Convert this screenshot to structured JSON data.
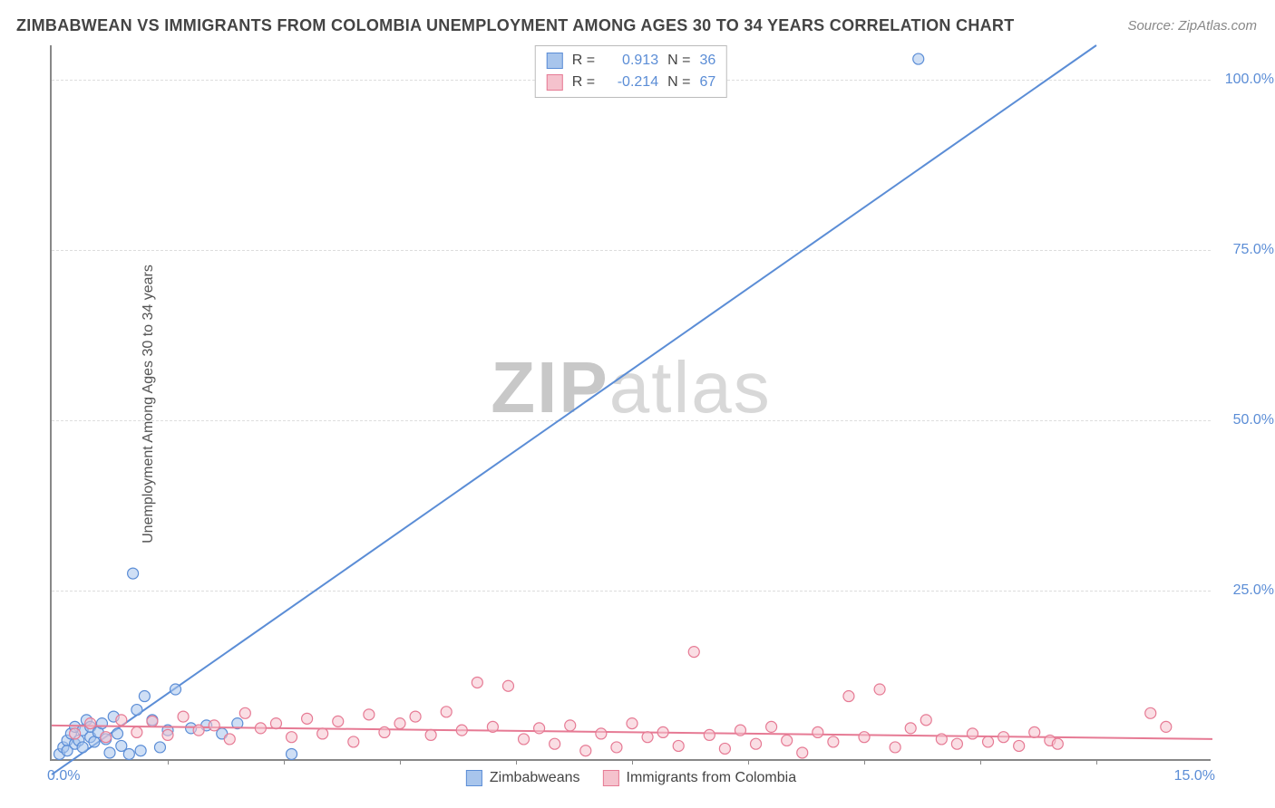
{
  "title": "ZIMBABWEAN VS IMMIGRANTS FROM COLOMBIA UNEMPLOYMENT AMONG AGES 30 TO 34 YEARS CORRELATION CHART",
  "source": "Source: ZipAtlas.com",
  "ylabel": "Unemployment Among Ages 30 to 34 years",
  "watermark_1": "ZIP",
  "watermark_2": "atlas",
  "chart": {
    "type": "scatter-with-regression",
    "xlim": [
      0,
      15
    ],
    "ylim": [
      0,
      105
    ],
    "xtick_left": "0.0%",
    "xtick_right": "15.0%",
    "yticks": [
      {
        "v": 25,
        "label": "25.0%"
      },
      {
        "v": 50,
        "label": "50.0%"
      },
      {
        "v": 75,
        "label": "75.0%"
      },
      {
        "v": 100,
        "label": "100.0%"
      }
    ],
    "minor_xticks": [
      1.5,
      3.0,
      4.5,
      6.0,
      7.5,
      9.0,
      10.5,
      12.0,
      13.5
    ],
    "background_color": "#ffffff",
    "grid_color": "#dddddd",
    "axis_color": "#888888",
    "tick_label_color": "#5b8dd6",
    "title_color": "#444444",
    "title_fontsize": 18,
    "label_fontsize": 16,
    "marker_radius": 6,
    "marker_stroke_width": 1.2,
    "line_width": 2,
    "series": [
      {
        "name": "Zimbabweans",
        "color_fill": "#a8c5ec",
        "color_stroke": "#5b8dd6",
        "R": "0.913",
        "N": "36",
        "regression": {
          "x1": 0,
          "y1": -2,
          "x2": 13.5,
          "y2": 105
        },
        "points": [
          [
            0.1,
            1
          ],
          [
            0.15,
            2
          ],
          [
            0.2,
            3
          ],
          [
            0.2,
            1.5
          ],
          [
            0.25,
            4
          ],
          [
            0.3,
            2.5
          ],
          [
            0.3,
            5
          ],
          [
            0.35,
            3
          ],
          [
            0.4,
            4.5
          ],
          [
            0.4,
            2
          ],
          [
            0.45,
            6
          ],
          [
            0.5,
            3.5
          ],
          [
            0.5,
            5
          ],
          [
            0.55,
            2.8
          ],
          [
            0.6,
            4.2
          ],
          [
            0.65,
            5.5
          ],
          [
            0.7,
            3.2
          ],
          [
            0.75,
            1.2
          ],
          [
            0.8,
            6.5
          ],
          [
            0.85,
            4
          ],
          [
            0.9,
            2.2
          ],
          [
            1.0,
            1
          ],
          [
            1.1,
            7.5
          ],
          [
            1.15,
            1.5
          ],
          [
            1.2,
            9.5
          ],
          [
            1.3,
            6
          ],
          [
            1.4,
            2.0
          ],
          [
            1.5,
            4.5
          ],
          [
            1.6,
            10.5
          ],
          [
            1.8,
            4.8
          ],
          [
            2.0,
            5.2
          ],
          [
            2.2,
            4.0
          ],
          [
            2.4,
            5.5
          ],
          [
            3.1,
            1.0
          ],
          [
            1.05,
            27.5
          ],
          [
            11.2,
            103
          ]
        ]
      },
      {
        "name": "Immigrants from Colombia",
        "color_fill": "#f5c2cd",
        "color_stroke": "#e67a94",
        "R": "-0.214",
        "N": "67",
        "regression": {
          "x1": 0,
          "y1": 5.2,
          "x2": 15,
          "y2": 3.2
        },
        "points": [
          [
            0.3,
            4
          ],
          [
            0.5,
            5.5
          ],
          [
            0.7,
            3.5
          ],
          [
            0.9,
            6
          ],
          [
            1.1,
            4.2
          ],
          [
            1.3,
            5.8
          ],
          [
            1.5,
            3.8
          ],
          [
            1.7,
            6.5
          ],
          [
            1.9,
            4.5
          ],
          [
            2.1,
            5.2
          ],
          [
            2.3,
            3.2
          ],
          [
            2.5,
            7.0
          ],
          [
            2.7,
            4.8
          ],
          [
            2.9,
            5.5
          ],
          [
            3.1,
            3.5
          ],
          [
            3.3,
            6.2
          ],
          [
            3.5,
            4.0
          ],
          [
            3.7,
            5.8
          ],
          [
            3.9,
            2.8
          ],
          [
            4.1,
            6.8
          ],
          [
            4.3,
            4.2
          ],
          [
            4.5,
            5.5
          ],
          [
            4.7,
            6.5
          ],
          [
            4.9,
            3.8
          ],
          [
            5.1,
            7.2
          ],
          [
            5.3,
            4.5
          ],
          [
            5.5,
            11.5
          ],
          [
            5.7,
            5.0
          ],
          [
            5.9,
            11.0
          ],
          [
            6.1,
            3.2
          ],
          [
            6.3,
            4.8
          ],
          [
            6.5,
            2.5
          ],
          [
            6.7,
            5.2
          ],
          [
            6.9,
            1.5
          ],
          [
            7.1,
            4.0
          ],
          [
            7.3,
            2.0
          ],
          [
            7.5,
            5.5
          ],
          [
            7.7,
            3.5
          ],
          [
            7.9,
            4.2
          ],
          [
            8.1,
            2.2
          ],
          [
            8.3,
            16.0
          ],
          [
            8.5,
            3.8
          ],
          [
            8.7,
            1.8
          ],
          [
            8.9,
            4.5
          ],
          [
            9.1,
            2.5
          ],
          [
            9.3,
            5.0
          ],
          [
            9.5,
            3.0
          ],
          [
            9.7,
            1.2
          ],
          [
            9.9,
            4.2
          ],
          [
            10.1,
            2.8
          ],
          [
            10.3,
            9.5
          ],
          [
            10.5,
            3.5
          ],
          [
            10.7,
            10.5
          ],
          [
            10.9,
            2.0
          ],
          [
            11.1,
            4.8
          ],
          [
            11.3,
            6.0
          ],
          [
            11.5,
            3.2
          ],
          [
            11.7,
            2.5
          ],
          [
            11.9,
            4.0
          ],
          [
            12.1,
            2.8
          ],
          [
            12.3,
            3.5
          ],
          [
            12.5,
            2.2
          ],
          [
            12.7,
            4.2
          ],
          [
            12.9,
            3.0
          ],
          [
            14.2,
            7.0
          ],
          [
            14.4,
            5.0
          ],
          [
            13.0,
            2.5
          ]
        ]
      }
    ]
  },
  "legend_top": {
    "r_label": "R =",
    "n_label": "N ="
  }
}
